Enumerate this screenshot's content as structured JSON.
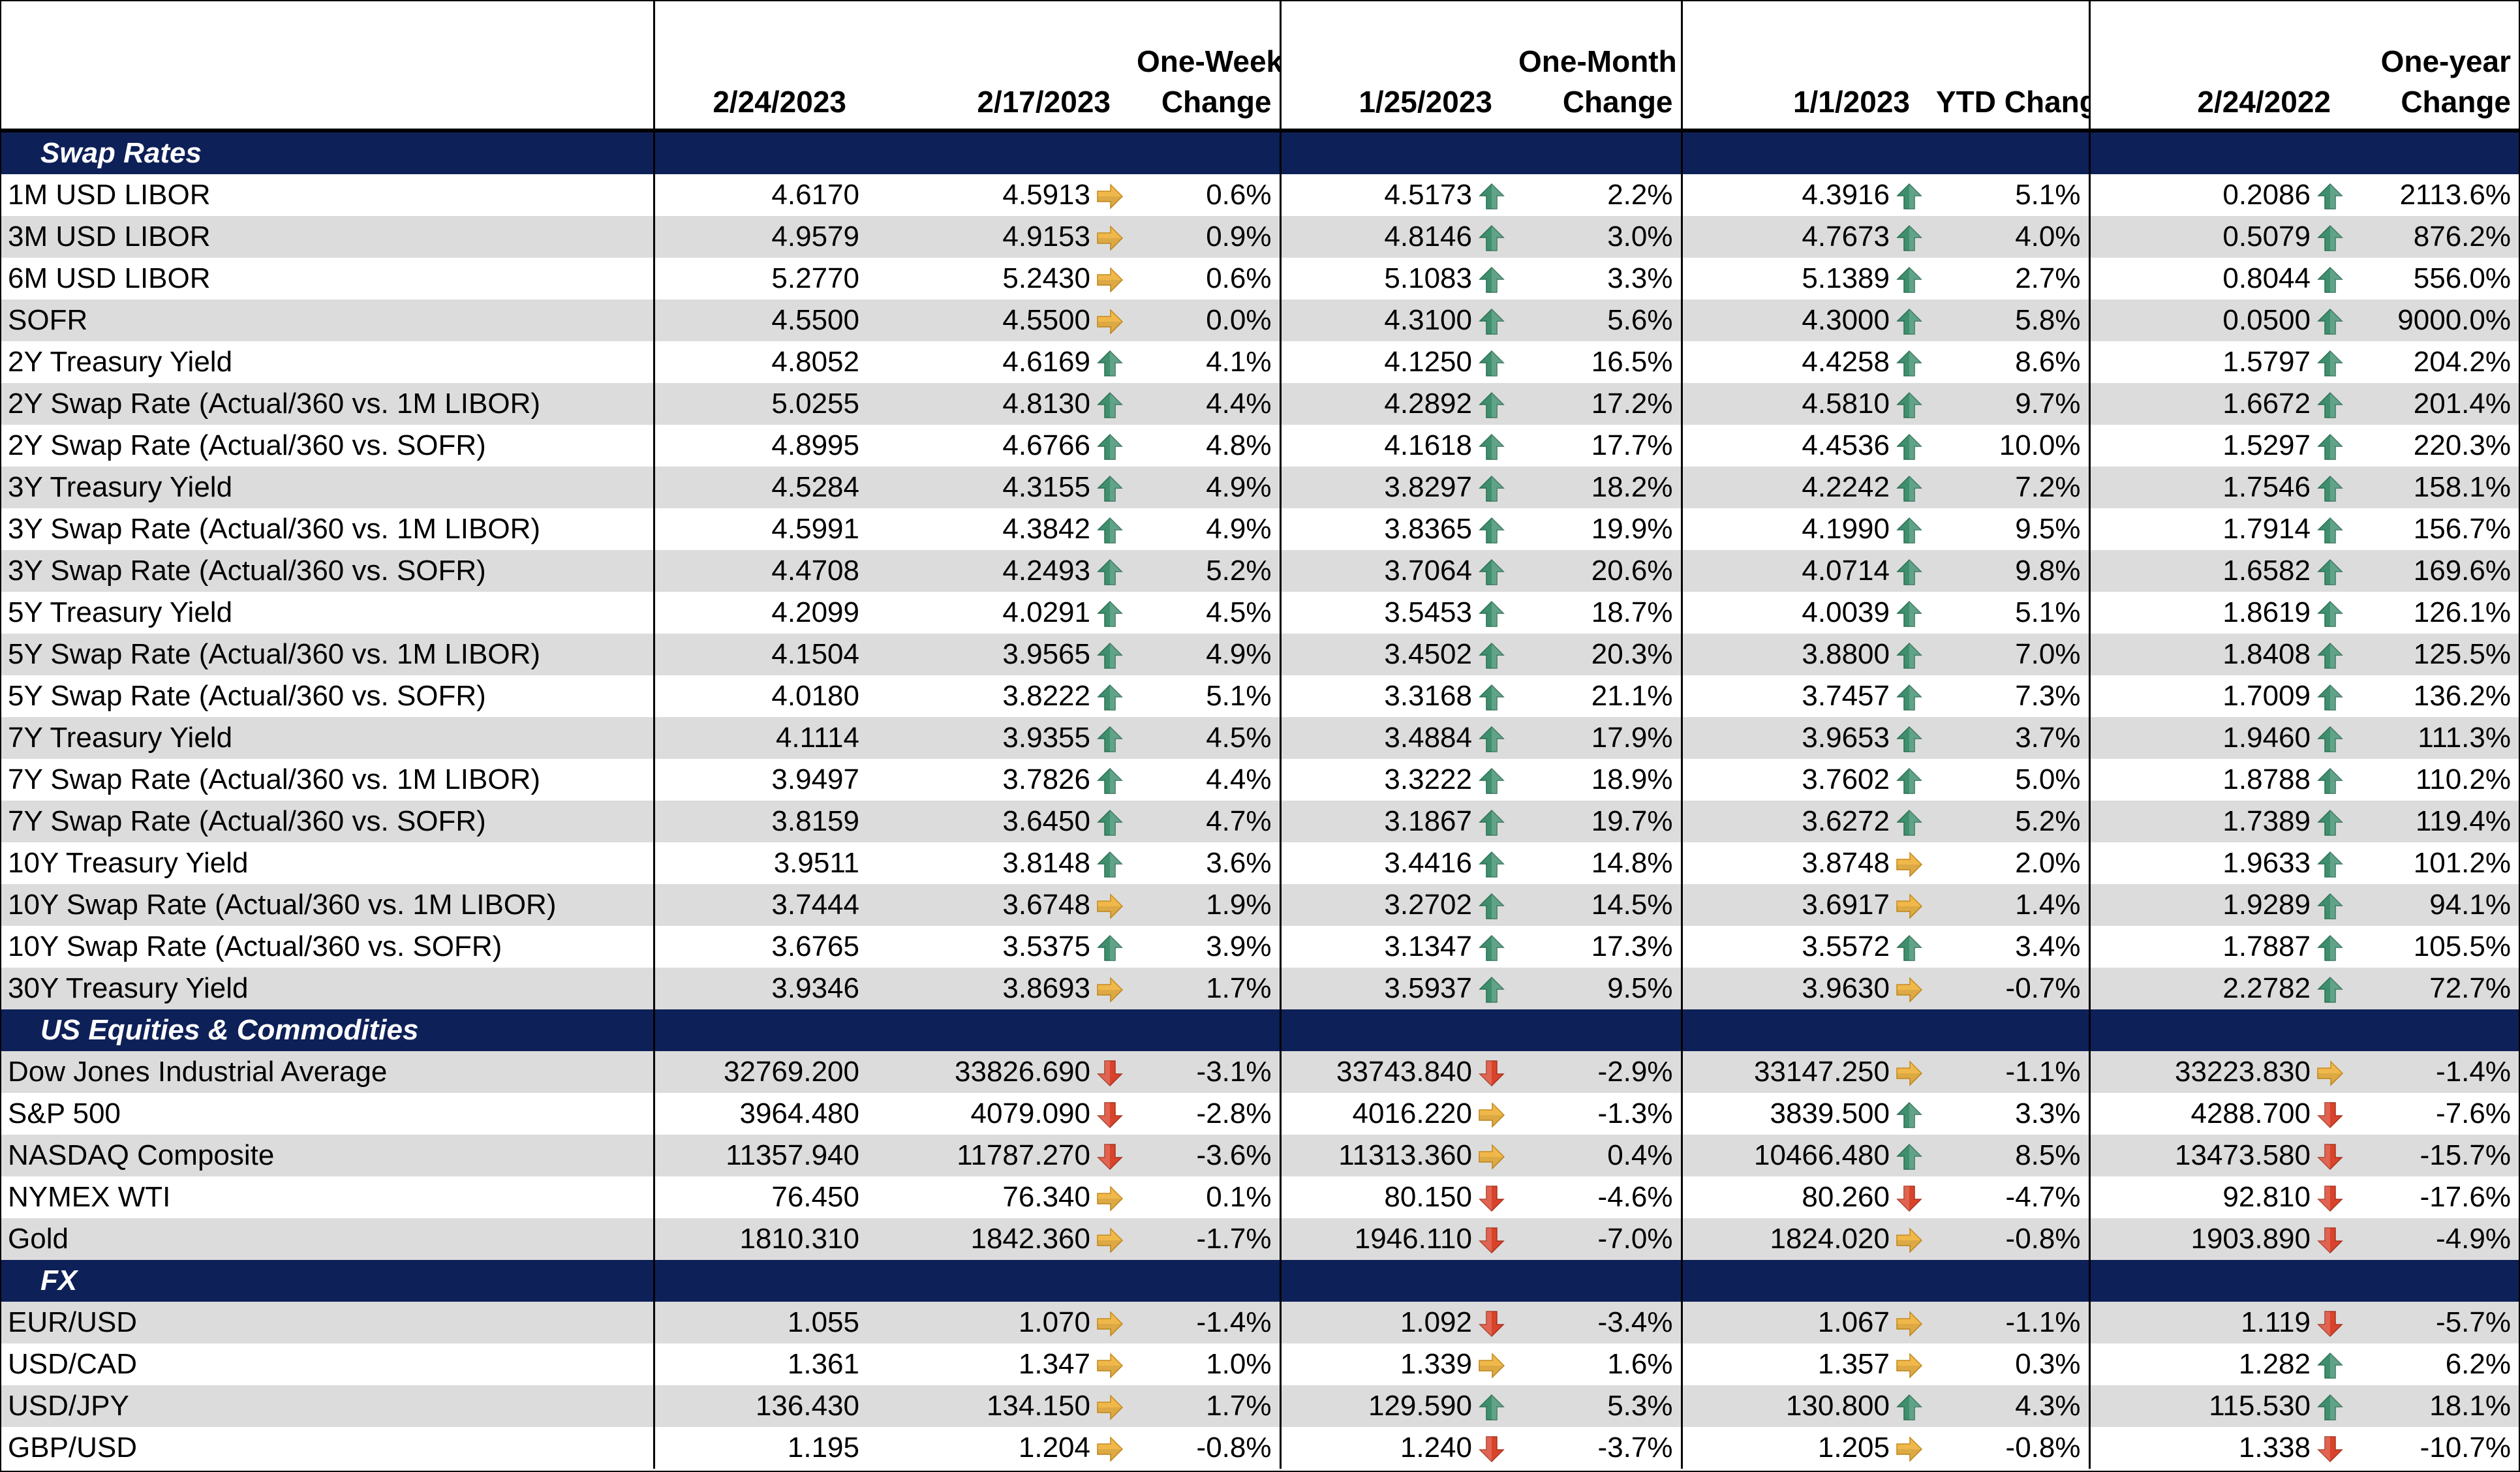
{
  "headers": {
    "d1": "2/24/2023",
    "d2": "2/17/2023",
    "c1a": "One-Week",
    "c1b": "Change",
    "d3": "1/25/2023",
    "c2a": "One-Month",
    "c2b": "Change",
    "d4": "1/1/2023",
    "c3": "YTD Change",
    "d5": "2/24/2022",
    "c4a": "One-year",
    "c4b": "Change"
  },
  "icon_colors": {
    "up": "#3f8f6e",
    "side": "#f0b84a",
    "down": "#d9432b"
  },
  "sections": [
    {
      "title": "Swap Rates",
      "rows": [
        {
          "label": "1M USD LIBOR",
          "v1": "4.6170",
          "v2": "4.5913",
          "a1": "side",
          "p1": "0.6%",
          "v3": "4.5173",
          "a2": "up",
          "p2": "2.2%",
          "v4": "4.3916",
          "a3": "up",
          "p3": "5.1%",
          "v5": "0.2086",
          "a4": "up",
          "p4": "2113.6%"
        },
        {
          "label": "3M USD LIBOR",
          "v1": "4.9579",
          "v2": "4.9153",
          "a1": "side",
          "p1": "0.9%",
          "v3": "4.8146",
          "a2": "up",
          "p2": "3.0%",
          "v4": "4.7673",
          "a3": "up",
          "p3": "4.0%",
          "v5": "0.5079",
          "a4": "up",
          "p4": "876.2%"
        },
        {
          "label": "6M USD LIBOR",
          "v1": "5.2770",
          "v2": "5.2430",
          "a1": "side",
          "p1": "0.6%",
          "v3": "5.1083",
          "a2": "up",
          "p2": "3.3%",
          "v4": "5.1389",
          "a3": "up",
          "p3": "2.7%",
          "v5": "0.8044",
          "a4": "up",
          "p4": "556.0%"
        },
        {
          "label": "SOFR",
          "v1": "4.5500",
          "v2": "4.5500",
          "a1": "side",
          "p1": "0.0%",
          "v3": "4.3100",
          "a2": "up",
          "p2": "5.6%",
          "v4": "4.3000",
          "a3": "up",
          "p3": "5.8%",
          "v5": "0.0500",
          "a4": "up",
          "p4": "9000.0%"
        },
        {
          "label": "2Y Treasury Yield",
          "v1": "4.8052",
          "v2": "4.6169",
          "a1": "up",
          "p1": "4.1%",
          "v3": "4.1250",
          "a2": "up",
          "p2": "16.5%",
          "v4": "4.4258",
          "a3": "up",
          "p3": "8.6%",
          "v5": "1.5797",
          "a4": "up",
          "p4": "204.2%"
        },
        {
          "label": "2Y Swap Rate (Actual/360 vs. 1M LIBOR)",
          "v1": "5.0255",
          "v2": "4.8130",
          "a1": "up",
          "p1": "4.4%",
          "v3": "4.2892",
          "a2": "up",
          "p2": "17.2%",
          "v4": "4.5810",
          "a3": "up",
          "p3": "9.7%",
          "v5": "1.6672",
          "a4": "up",
          "p4": "201.4%"
        },
        {
          "label": "2Y Swap Rate (Actual/360 vs. SOFR)",
          "v1": "4.8995",
          "v2": "4.6766",
          "a1": "up",
          "p1": "4.8%",
          "v3": "4.1618",
          "a2": "up",
          "p2": "17.7%",
          "v4": "4.4536",
          "a3": "up",
          "p3": "10.0%",
          "v5": "1.5297",
          "a4": "up",
          "p4": "220.3%"
        },
        {
          "label": "3Y Treasury Yield",
          "v1": "4.5284",
          "v2": "4.3155",
          "a1": "up",
          "p1": "4.9%",
          "v3": "3.8297",
          "a2": "up",
          "p2": "18.2%",
          "v4": "4.2242",
          "a3": "up",
          "p3": "7.2%",
          "v5": "1.7546",
          "a4": "up",
          "p4": "158.1%"
        },
        {
          "label": "3Y Swap Rate (Actual/360 vs. 1M LIBOR)",
          "v1": "4.5991",
          "v2": "4.3842",
          "a1": "up",
          "p1": "4.9%",
          "v3": "3.8365",
          "a2": "up",
          "p2": "19.9%",
          "v4": "4.1990",
          "a3": "up",
          "p3": "9.5%",
          "v5": "1.7914",
          "a4": "up",
          "p4": "156.7%"
        },
        {
          "label": "3Y Swap Rate (Actual/360 vs. SOFR)",
          "v1": "4.4708",
          "v2": "4.2493",
          "a1": "up",
          "p1": "5.2%",
          "v3": "3.7064",
          "a2": "up",
          "p2": "20.6%",
          "v4": "4.0714",
          "a3": "up",
          "p3": "9.8%",
          "v5": "1.6582",
          "a4": "up",
          "p4": "169.6%"
        },
        {
          "label": "5Y Treasury Yield",
          "v1": "4.2099",
          "v2": "4.0291",
          "a1": "up",
          "p1": "4.5%",
          "v3": "3.5453",
          "a2": "up",
          "p2": "18.7%",
          "v4": "4.0039",
          "a3": "up",
          "p3": "5.1%",
          "v5": "1.8619",
          "a4": "up",
          "p4": "126.1%"
        },
        {
          "label": "5Y Swap Rate (Actual/360 vs. 1M LIBOR)",
          "v1": "4.1504",
          "v2": "3.9565",
          "a1": "up",
          "p1": "4.9%",
          "v3": "3.4502",
          "a2": "up",
          "p2": "20.3%",
          "v4": "3.8800",
          "a3": "up",
          "p3": "7.0%",
          "v5": "1.8408",
          "a4": "up",
          "p4": "125.5%"
        },
        {
          "label": "5Y Swap Rate (Actual/360 vs. SOFR)",
          "v1": "4.0180",
          "v2": "3.8222",
          "a1": "up",
          "p1": "5.1%",
          "v3": "3.3168",
          "a2": "up",
          "p2": "21.1%",
          "v4": "3.7457",
          "a3": "up",
          "p3": "7.3%",
          "v5": "1.7009",
          "a4": "up",
          "p4": "136.2%"
        },
        {
          "label": "7Y Treasury Yield",
          "v1": "4.1114",
          "v2": "3.9355",
          "a1": "up",
          "p1": "4.5%",
          "v3": "3.4884",
          "a2": "up",
          "p2": "17.9%",
          "v4": "3.9653",
          "a3": "up",
          "p3": "3.7%",
          "v5": "1.9460",
          "a4": "up",
          "p4": "111.3%"
        },
        {
          "label": "7Y Swap Rate (Actual/360 vs. 1M LIBOR)",
          "v1": "3.9497",
          "v2": "3.7826",
          "a1": "up",
          "p1": "4.4%",
          "v3": "3.3222",
          "a2": "up",
          "p2": "18.9%",
          "v4": "3.7602",
          "a3": "up",
          "p3": "5.0%",
          "v5": "1.8788",
          "a4": "up",
          "p4": "110.2%"
        },
        {
          "label": "7Y Swap Rate (Actual/360 vs. SOFR)",
          "v1": "3.8159",
          "v2": "3.6450",
          "a1": "up",
          "p1": "4.7%",
          "v3": "3.1867",
          "a2": "up",
          "p2": "19.7%",
          "v4": "3.6272",
          "a3": "up",
          "p3": "5.2%",
          "v5": "1.7389",
          "a4": "up",
          "p4": "119.4%"
        },
        {
          "label": "10Y Treasury Yield",
          "v1": "3.9511",
          "v2": "3.8148",
          "a1": "up",
          "p1": "3.6%",
          "v3": "3.4416",
          "a2": "up",
          "p2": "14.8%",
          "v4": "3.8748",
          "a3": "side",
          "p3": "2.0%",
          "v5": "1.9633",
          "a4": "up",
          "p4": "101.2%"
        },
        {
          "label": "10Y Swap Rate (Actual/360 vs. 1M LIBOR)",
          "v1": "3.7444",
          "v2": "3.6748",
          "a1": "side",
          "p1": "1.9%",
          "v3": "3.2702",
          "a2": "up",
          "p2": "14.5%",
          "v4": "3.6917",
          "a3": "side",
          "p3": "1.4%",
          "v5": "1.9289",
          "a4": "up",
          "p4": "94.1%"
        },
        {
          "label": "10Y Swap Rate (Actual/360 vs. SOFR)",
          "v1": "3.6765",
          "v2": "3.5375",
          "a1": "up",
          "p1": "3.9%",
          "v3": "3.1347",
          "a2": "up",
          "p2": "17.3%",
          "v4": "3.5572",
          "a3": "up",
          "p3": "3.4%",
          "v5": "1.7887",
          "a4": "up",
          "p4": "105.5%"
        },
        {
          "label": "30Y Treasury Yield",
          "v1": "3.9346",
          "v2": "3.8693",
          "a1": "side",
          "p1": "1.7%",
          "v3": "3.5937",
          "a2": "up",
          "p2": "9.5%",
          "v4": "3.9630",
          "a3": "side",
          "p3": "-0.7%",
          "v5": "2.2782",
          "a4": "up",
          "p4": "72.7%"
        }
      ]
    },
    {
      "title": "US Equities & Commodities",
      "rows": [
        {
          "label": "Dow Jones Industrial Average",
          "v1": "32769.200",
          "v2": "33826.690",
          "a1": "down",
          "p1": "-3.1%",
          "v3": "33743.840",
          "a2": "down",
          "p2": "-2.9%",
          "v4": "33147.250",
          "a3": "side",
          "p3": "-1.1%",
          "v5": "33223.830",
          "a4": "side",
          "p4": "-1.4%"
        },
        {
          "label": "S&P 500",
          "v1": "3964.480",
          "v2": "4079.090",
          "a1": "down",
          "p1": "-2.8%",
          "v3": "4016.220",
          "a2": "side",
          "p2": "-1.3%",
          "v4": "3839.500",
          "a3": "up",
          "p3": "3.3%",
          "v5": "4288.700",
          "a4": "down",
          "p4": "-7.6%"
        },
        {
          "label": "NASDAQ Composite",
          "v1": "11357.940",
          "v2": "11787.270",
          "a1": "down",
          "p1": "-3.6%",
          "v3": "11313.360",
          "a2": "side",
          "p2": "0.4%",
          "v4": "10466.480",
          "a3": "up",
          "p3": "8.5%",
          "v5": "13473.580",
          "a4": "down",
          "p4": "-15.7%"
        },
        {
          "label": "NYMEX WTI",
          "v1": "76.450",
          "v2": "76.340",
          "a1": "side",
          "p1": "0.1%",
          "v3": "80.150",
          "a2": "down",
          "p2": "-4.6%",
          "v4": "80.260",
          "a3": "down",
          "p3": "-4.7%",
          "v5": "92.810",
          "a4": "down",
          "p4": "-17.6%"
        },
        {
          "label": "Gold",
          "v1": "1810.310",
          "v2": "1842.360",
          "a1": "side",
          "p1": "-1.7%",
          "v3": "1946.110",
          "a2": "down",
          "p2": "-7.0%",
          "v4": "1824.020",
          "a3": "side",
          "p3": "-0.8%",
          "v5": "1903.890",
          "a4": "down",
          "p4": "-4.9%"
        }
      ]
    },
    {
      "title": "FX",
      "rows": [
        {
          "label": "EUR/USD",
          "v1": "1.055",
          "v2": "1.070",
          "a1": "side",
          "p1": "-1.4%",
          "v3": "1.092",
          "a2": "down",
          "p2": "-3.4%",
          "v4": "1.067",
          "a3": "side",
          "p3": "-1.1%",
          "v5": "1.119",
          "a4": "down",
          "p4": "-5.7%"
        },
        {
          "label": "USD/CAD",
          "v1": "1.361",
          "v2": "1.347",
          "a1": "side",
          "p1": "1.0%",
          "v3": "1.339",
          "a2": "side",
          "p2": "1.6%",
          "v4": "1.357",
          "a3": "side",
          "p3": "0.3%",
          "v5": "1.282",
          "a4": "up",
          "p4": "6.2%"
        },
        {
          "label": "USD/JPY",
          "v1": "136.430",
          "v2": "134.150",
          "a1": "side",
          "p1": "1.7%",
          "v3": "129.590",
          "a2": "up",
          "p2": "5.3%",
          "v4": "130.800",
          "a3": "up",
          "p3": "4.3%",
          "v5": "115.530",
          "a4": "up",
          "p4": "18.1%"
        },
        {
          "label": "GBP/USD",
          "v1": "1.195",
          "v2": "1.204",
          "a1": "side",
          "p1": "-0.8%",
          "v3": "1.240",
          "a2": "down",
          "p2": "-3.7%",
          "v4": "1.205",
          "a3": "side",
          "p3": "-0.8%",
          "v5": "1.338",
          "a4": "down",
          "p4": "-10.7%"
        }
      ]
    }
  ]
}
